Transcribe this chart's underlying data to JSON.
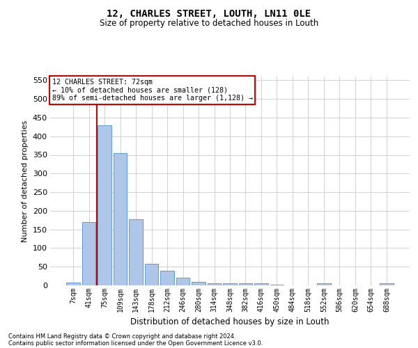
{
  "title": "12, CHARLES STREET, LOUTH, LN11 0LE",
  "subtitle": "Size of property relative to detached houses in Louth",
  "xlabel": "Distribution of detached houses by size in Louth",
  "ylabel": "Number of detached properties",
  "footer_line1": "Contains HM Land Registry data © Crown copyright and database right 2024.",
  "footer_line2": "Contains public sector information licensed under the Open Government Licence v3.0.",
  "annotation_line1": "12 CHARLES STREET: 72sqm",
  "annotation_line2": "← 10% of detached houses are smaller (128)",
  "annotation_line3": "89% of semi-detached houses are larger (1,128) →",
  "bar_labels": [
    "7sqm",
    "41sqm",
    "75sqm",
    "109sqm",
    "143sqm",
    "178sqm",
    "212sqm",
    "246sqm",
    "280sqm",
    "314sqm",
    "348sqm",
    "382sqm",
    "416sqm",
    "450sqm",
    "484sqm",
    "518sqm",
    "552sqm",
    "586sqm",
    "620sqm",
    "654sqm",
    "688sqm"
  ],
  "bar_values": [
    8,
    170,
    430,
    355,
    178,
    57,
    40,
    20,
    10,
    6,
    5,
    5,
    5,
    1,
    0,
    0,
    5,
    0,
    0,
    0,
    5
  ],
  "bar_color": "#aec6e8",
  "bar_edge_color": "#5b9bd5",
  "grid_color": "#d0d0d0",
  "background_color": "#ffffff",
  "plot_bg_color": "#ffffff",
  "red_line_color": "#cc0000",
  "annotation_box_color": "#cc0000",
  "ylim": [
    0,
    560
  ],
  "yticks": [
    0,
    50,
    100,
    150,
    200,
    250,
    300,
    350,
    400,
    450,
    500,
    550
  ]
}
